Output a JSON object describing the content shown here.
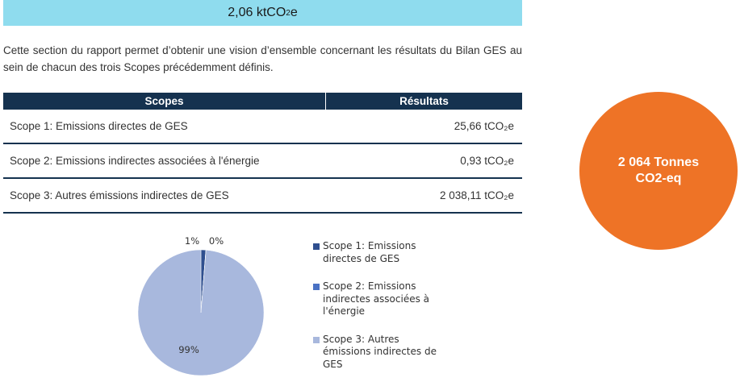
{
  "banner": {
    "value": "2,06 ktCO",
    "sub": "2",
    "suffix": "e"
  },
  "intro_text": "Cette section du rapport permet d’obtenir une vision d’ensemble concernant les résultats du Bilan GES au sein de chacun des trois Scopes précédemment définis.",
  "table": {
    "headers": [
      "Scopes",
      "Résultats"
    ],
    "rows": [
      {
        "scope": "Scope 1: Emissions directes de GES",
        "result": "25,66 tCO₂e"
      },
      {
        "scope": "Scope 2:  Emissions indirectes associées à l'énergie",
        "result": "0,93 tCO₂e"
      },
      {
        "scope": "Scope 3: Autres émissions indirectes de GES",
        "result": "2 038,11 tCO₂e"
      }
    ]
  },
  "total_circle": {
    "line1": "2 064 Tonnes",
    "line2": "CO2-eq",
    "color": "#ee7326"
  },
  "chart_data": {
    "type": "pie",
    "categories": [
      "Scope 1: Emissions directes de GES",
      "Scope 2:  Emissions indirectes associées à l'énergie",
      "Scope 3: Autres émissions indirectes de GES"
    ],
    "values": [
      25.66,
      0.93,
      2038.11
    ],
    "data_labels": [
      "1%",
      "0%",
      "99%"
    ],
    "colors": [
      "#2f4f8f",
      "#4a72c4",
      "#a8b8dd"
    ],
    "legend_position": "right"
  }
}
